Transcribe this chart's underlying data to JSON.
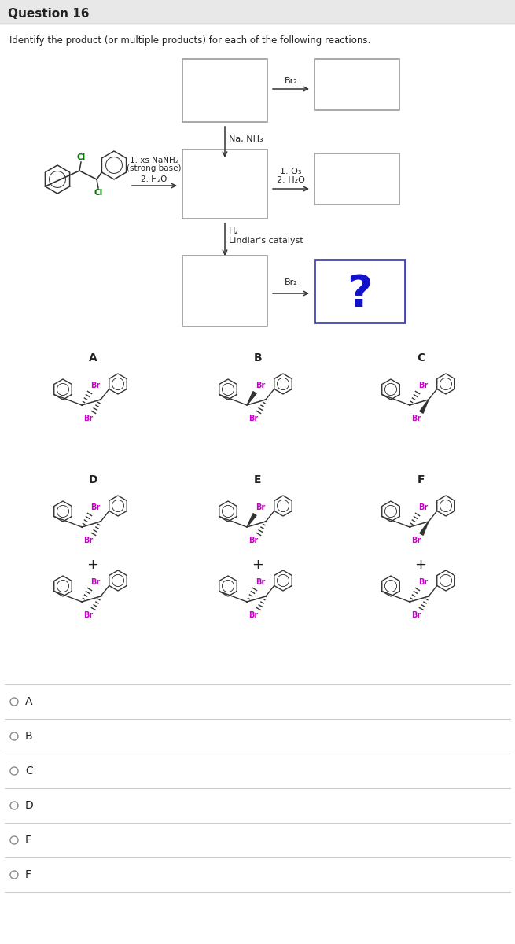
{
  "title": "Question 16",
  "subtitle": "Identify the product (or multiple products) for each of the following reactions:",
  "bg_color": "#ffffff",
  "header_bg": "#e8e8e8",
  "header_line_color": "#bbbbbb",
  "box_edge_color": "#999999",
  "highlight_box_edge": "#4444aa",
  "question_mark_color": "#1111cc",
  "br_color": "#cc00cc",
  "cl_color": "#007700",
  "arrow_color": "#333333",
  "text_color": "#222222",
  "answer_options": [
    "A",
    "B",
    "C",
    "D",
    "E",
    "F"
  ],
  "reaction_labels": {
    "step1a": "1. xs NaNH₂",
    "step1b": "(strong base)",
    "step2": "2. H₂O",
    "na_nh3": "Na, NH₃",
    "h2": "H₂",
    "lindlar": "Lindlar's catalyst",
    "br2_top": "Br₂",
    "br2_bottom": "Br₂",
    "o3_step": "1. O₃",
    "h2o_step": "2. H₂O"
  }
}
